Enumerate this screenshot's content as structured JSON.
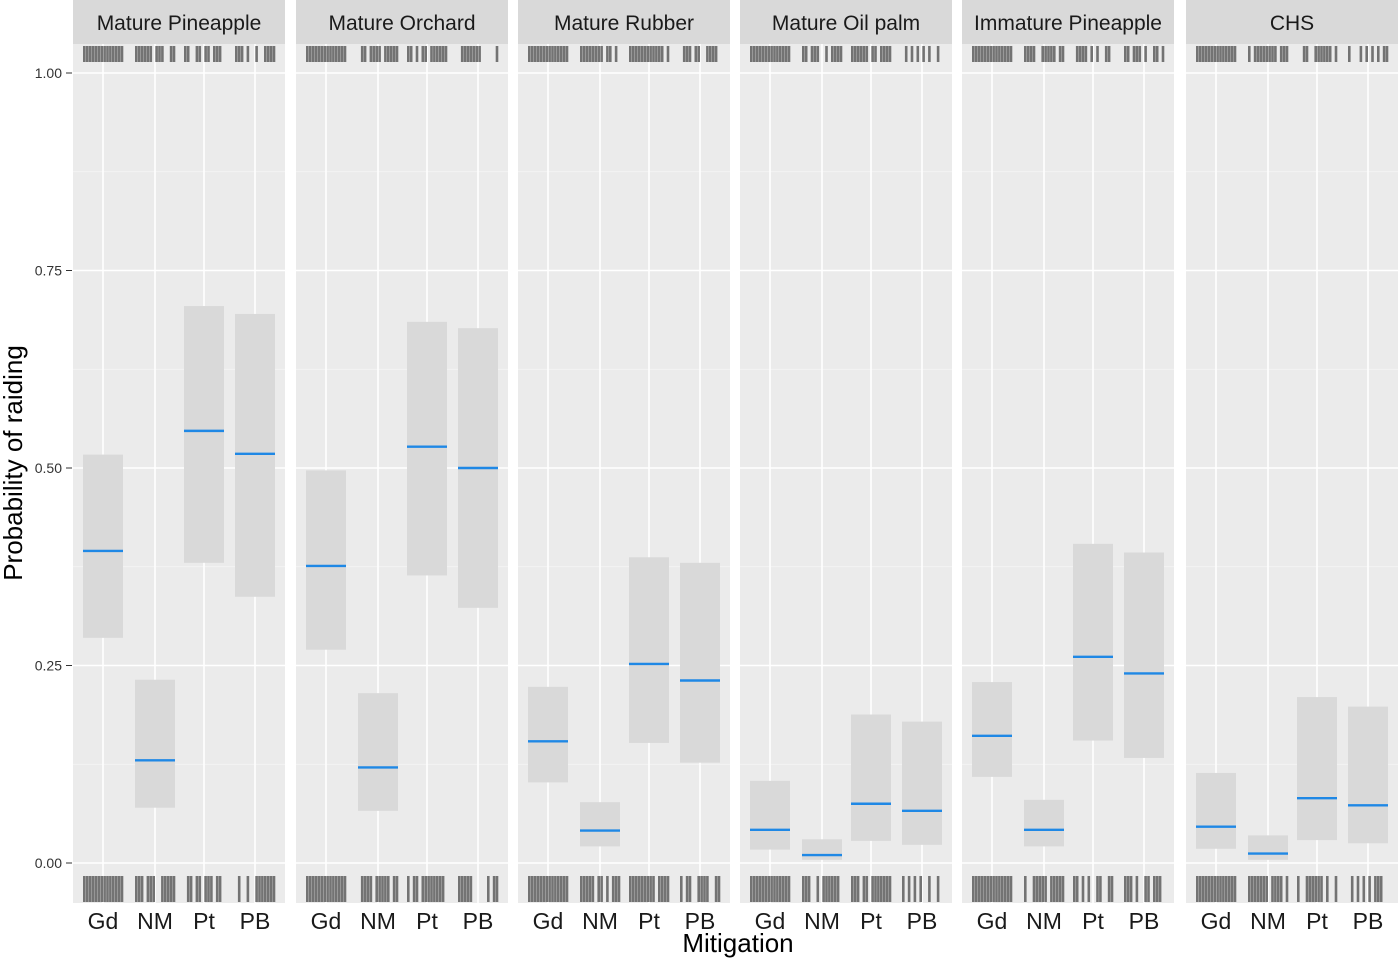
{
  "chart_data": {
    "type": "crossbar",
    "xlabel": "Mitigation",
    "ylabel": "Probability of raiding",
    "categories": [
      "Gd",
      "NM",
      "Pt",
      "PB"
    ],
    "ylim": [
      0,
      1
    ],
    "yticks": [
      "0.00",
      "0.25",
      "0.50",
      "0.75",
      "1.00"
    ],
    "ytick_values": [
      0,
      0.25,
      0.5,
      0.75,
      1.0
    ],
    "grid": true,
    "colors": {
      "panel_bg": "#ebebeb",
      "strip_bg": "#d9d9d9",
      "grid_major": "#ffffff",
      "ci_fill": "#d9d9d9",
      "mean_line": "#1f88e5",
      "rug": "#737373"
    },
    "panels": [
      {
        "label": "Mature Pineapple",
        "mean": [
          0.395,
          0.13,
          0.547,
          0.518
        ],
        "lower": [
          0.285,
          0.07,
          0.38,
          0.337
        ],
        "upper": [
          0.517,
          0.232,
          0.705,
          0.695
        ]
      },
      {
        "label": "Mature Orchard",
        "mean": [
          0.376,
          0.121,
          0.527,
          0.5
        ],
        "lower": [
          0.27,
          0.066,
          0.364,
          0.323
        ],
        "upper": [
          0.497,
          0.215,
          0.685,
          0.677
        ]
      },
      {
        "label": "Mature Rubber",
        "mean": [
          0.154,
          0.041,
          0.252,
          0.231
        ],
        "lower": [
          0.102,
          0.021,
          0.152,
          0.127
        ],
        "upper": [
          0.223,
          0.077,
          0.387,
          0.38
        ]
      },
      {
        "label": "Mature Oil palm",
        "mean": [
          0.042,
          0.01,
          0.075,
          0.066
        ],
        "lower": [
          0.017,
          0.004,
          0.028,
          0.023
        ],
        "upper": [
          0.104,
          0.03,
          0.188,
          0.179
        ]
      },
      {
        "label": "Immature Pineapple",
        "mean": [
          0.161,
          0.042,
          0.261,
          0.24
        ],
        "lower": [
          0.109,
          0.021,
          0.155,
          0.133
        ],
        "upper": [
          0.229,
          0.08,
          0.404,
          0.393
        ]
      },
      {
        "label": "CHS",
        "mean": [
          0.046,
          0.012,
          0.082,
          0.073
        ],
        "lower": [
          0.018,
          0.004,
          0.029,
          0.025
        ],
        "upper": [
          0.114,
          0.035,
          0.21,
          0.198
        ]
      }
    ]
  }
}
